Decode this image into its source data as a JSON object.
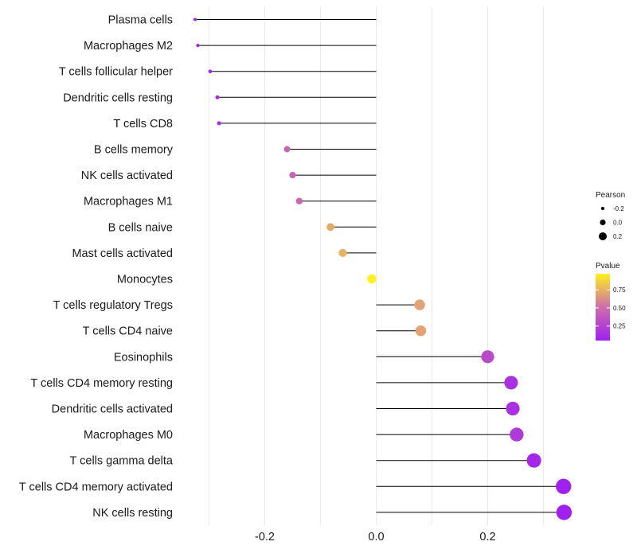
{
  "chart_data": {
    "type": "lollipop",
    "title": "",
    "xlabel": "",
    "ylabel": "",
    "xlim": [
      -0.335,
      0.35
    ],
    "x_ticks": [
      -0.2,
      0.0,
      0.2
    ],
    "x_tick_labels": [
      "-0.2",
      "0.0",
      "0.2"
    ],
    "grid": true,
    "baseline": 0,
    "categories": [
      "Plasma cells",
      "Macrophages M2",
      "T cells follicular helper",
      "Dendritic cells resting",
      "T cells CD8",
      "B cells memory",
      "NK cells activated",
      "Macrophages M1",
      "B cells naive",
      "Mast cells activated",
      "Monocytes",
      "T cells regulatory  Tregs ",
      "T cells CD4 naive",
      "Eosinophils",
      "T cells CD4 memory resting",
      "Dendritic cells activated",
      "Macrophages M0",
      "T cells gamma delta",
      "T cells CD4 memory activated",
      "NK cells resting"
    ],
    "values": [
      -0.325,
      -0.32,
      -0.298,
      -0.285,
      -0.282,
      -0.16,
      -0.15,
      -0.138,
      -0.082,
      -0.06,
      -0.008,
      0.078,
      0.08,
      0.2,
      0.242,
      0.245,
      0.252,
      0.283,
      0.336,
      0.337
    ],
    "pvalues": [
      0.08,
      0.08,
      0.1,
      0.12,
      0.12,
      0.45,
      0.45,
      0.48,
      0.72,
      0.75,
      0.97,
      0.7,
      0.7,
      0.3,
      0.15,
      0.15,
      0.2,
      0.1,
      0.05,
      0.05
    ],
    "size_legend": {
      "title": "Pearson",
      "labels": [
        "-0.2",
        "0.0",
        "0.2"
      ],
      "values": [
        -0.2,
        0.0,
        0.2
      ]
    },
    "color_legend": {
      "title": "Pvalue",
      "labels": [
        "0.75",
        "0.50",
        "0.25"
      ],
      "values": [
        0.75,
        0.5,
        0.25
      ],
      "range": [
        0.05,
        0.97
      ],
      "colors": [
        "#a020f0",
        "#fff01e"
      ]
    },
    "legend_position": "right"
  }
}
